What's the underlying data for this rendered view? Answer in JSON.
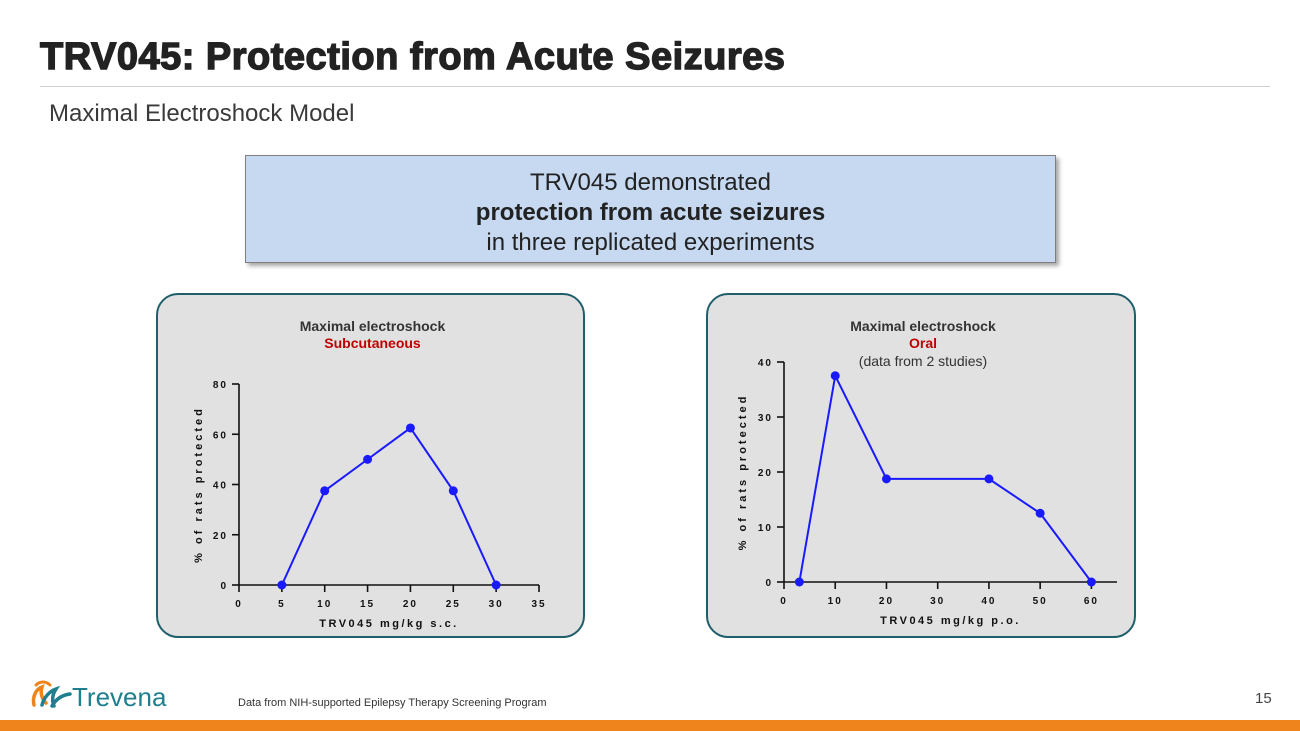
{
  "slide": {
    "title": "TRV045: Protection from Acute Seizures",
    "subtitle": "Maximal Electroshock Model",
    "callout": {
      "line1": "TRV045 demonstrated",
      "line2": "protection from acute seizures",
      "line3": "in three replicated experiments"
    },
    "footnote": "Data from NIH-supported Epilepsy Therapy Screening Program",
    "page_number": "15",
    "logo_text": "Trevena",
    "colors": {
      "accent_orange": "#f0841c",
      "panel_border": "#1f5f6b",
      "callout_fill": "#c6d9f1",
      "series": "#1a1aff",
      "highlight_red": "#c00000"
    }
  },
  "chart_data": [
    {
      "type": "line",
      "title": "Maximal electroshock",
      "subtitle": "Subcutaneous",
      "xlabel": "TRV045 mg/kg s.c.",
      "ylabel": "% of rats protected",
      "xlim": [
        0,
        35
      ],
      "ylim": [
        0,
        80
      ],
      "xticks": [
        0,
        5,
        10,
        15,
        20,
        25,
        30,
        35
      ],
      "yticks": [
        0,
        20,
        40,
        60,
        80
      ],
      "series": [
        {
          "x": [
            5,
            10,
            15,
            20,
            25,
            30
          ],
          "y": [
            0,
            37.5,
            50,
            62.5,
            37.5,
            0
          ]
        }
      ],
      "grid": false,
      "legend": "none"
    },
    {
      "type": "line",
      "title": "Maximal electroshock",
      "subtitle": "Oral",
      "note": "(data from 2 studies)",
      "xlabel": "TRV045 mg/kg p.o.",
      "ylabel": "% of rats protected",
      "xlim": [
        0,
        65
      ],
      "ylim": [
        0,
        40
      ],
      "xticks": [
        0,
        10,
        20,
        30,
        40,
        50,
        60
      ],
      "yticks": [
        0,
        10,
        20,
        30,
        40
      ],
      "series": [
        {
          "x": [
            3,
            10,
            20,
            40,
            50,
            60
          ],
          "y": [
            0,
            37.5,
            18.75,
            18.75,
            12.5,
            0
          ]
        }
      ],
      "grid": false,
      "legend": "none"
    }
  ]
}
